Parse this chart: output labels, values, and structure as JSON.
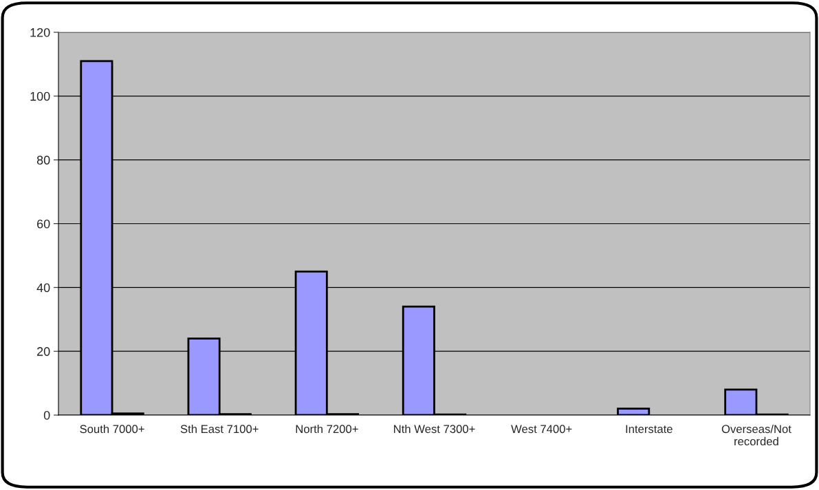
{
  "chart_data": {
    "type": "bar",
    "categories": [
      "South 7000+",
      "Sth East 7100+",
      "North 7200+",
      "Nth West 7300+",
      "West 7400+",
      "Interstate",
      "Overseas/Not\nrecorded"
    ],
    "series": [
      {
        "color": "#9999ff",
        "values": [
          111,
          24,
          45,
          34,
          null,
          2,
          8
        ]
      },
      {
        "color": "#993366",
        "values": [
          0.5,
          0.3,
          0.3,
          0.2,
          null,
          null,
          0.2
        ]
      }
    ],
    "ylim": [
      0,
      120
    ],
    "yticks": [
      0,
      20,
      40,
      60,
      80,
      100,
      120
    ],
    "grid": "y",
    "legend": false
  }
}
